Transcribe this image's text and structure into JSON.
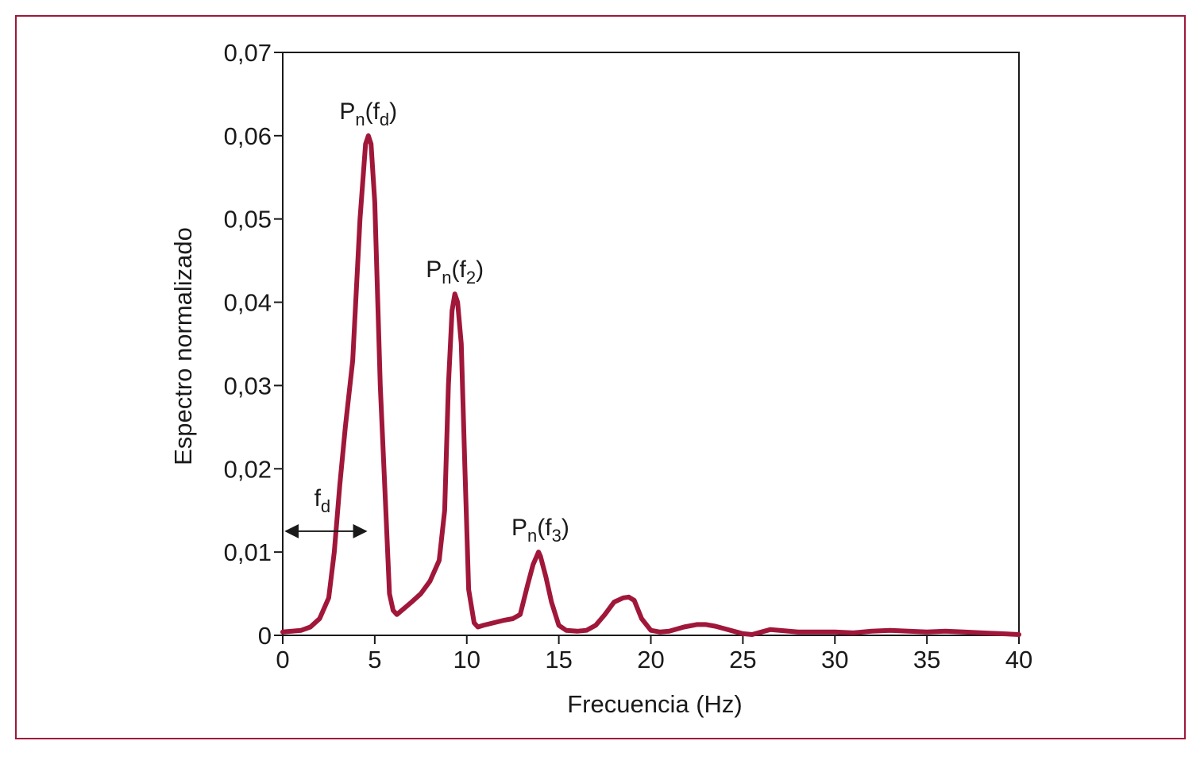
{
  "colors": {
    "frame": "#a0173a",
    "line": "#a0173a",
    "axis": "#1a1a1a"
  },
  "chart_data": {
    "type": "line",
    "xlabel": "Frecuencia (Hz)",
    "ylabel": "Espectro normalizado",
    "xlim": [
      0,
      40
    ],
    "ylim": [
      0,
      0.07
    ],
    "x_ticks": [
      0,
      5,
      10,
      15,
      20,
      25,
      30,
      35,
      40
    ],
    "x_tick_labels": [
      "0",
      "5",
      "10",
      "15",
      "20",
      "25",
      "30",
      "35",
      "40"
    ],
    "y_ticks": [
      0,
      0.01,
      0.02,
      0.03,
      0.04,
      0.05,
      0.06,
      0.07
    ],
    "y_tick_labels": [
      "0",
      "0,01",
      "0,02",
      "0,03",
      "0,04",
      "0,05",
      "0,06",
      "0,07"
    ],
    "grid": false,
    "series": [
      {
        "x": [
          0,
          1,
          1.5,
          2,
          2.5,
          2.8,
          3.1,
          3.4,
          3.8,
          4.2,
          4.5,
          4.65,
          4.8,
          5.0,
          5.3,
          5.6,
          5.8,
          6.0,
          6.2,
          7.0,
          7.5,
          8.0,
          8.5,
          8.8,
          9.0,
          9.2,
          9.35,
          9.5,
          9.7,
          9.9,
          10.1,
          10.4,
          10.6,
          10.9,
          12.0,
          12.5,
          12.9,
          13.3,
          13.6,
          13.9,
          14.0,
          14.3,
          14.6,
          15.0,
          15.4,
          16.0,
          16.5,
          17.0,
          17.5,
          18.0,
          18.5,
          18.8,
          19.1,
          19.5,
          20.0,
          20.5,
          21.0,
          21.8,
          22.5,
          23.0,
          23.5,
          24.0,
          24.5,
          25.0,
          25.5,
          26.0,
          26.5,
          27.0,
          28.0,
          29.0,
          30.0,
          31.0,
          32.0,
          33.0,
          34.0,
          35.0,
          36.0,
          37.0,
          38.0,
          39.0,
          40.0
        ],
        "y": [
          0.0004,
          0.0006,
          0.001,
          0.002,
          0.0045,
          0.01,
          0.018,
          0.025,
          0.033,
          0.05,
          0.059,
          0.06,
          0.059,
          0.052,
          0.03,
          0.015,
          0.005,
          0.003,
          0.0025,
          0.004,
          0.005,
          0.0065,
          0.009,
          0.015,
          0.03,
          0.039,
          0.041,
          0.04,
          0.035,
          0.02,
          0.0055,
          0.0015,
          0.001,
          0.0012,
          0.0018,
          0.002,
          0.0025,
          0.006,
          0.0085,
          0.01,
          0.0095,
          0.007,
          0.004,
          0.0012,
          0.0006,
          0.0005,
          0.0006,
          0.0012,
          0.0025,
          0.004,
          0.0045,
          0.0046,
          0.0042,
          0.002,
          0.0006,
          0.0004,
          0.0005,
          0.001,
          0.0013,
          0.0013,
          0.0011,
          0.0008,
          0.0005,
          0.0002,
          0.0001,
          0.0004,
          0.0007,
          0.0006,
          0.0004,
          0.0004,
          0.0004,
          0.0003,
          0.0005,
          0.0006,
          0.0005,
          0.0004,
          0.0005,
          0.0004,
          0.0003,
          0.0002,
          0.0001
        ]
      }
    ],
    "annotations": [
      {
        "base": "P",
        "sub1": "n",
        "mid": "(f",
        "sub2": "d",
        "end": ")",
        "x": 4.65,
        "y": 0.06
      },
      {
        "base": "P",
        "sub1": "n",
        "mid": "(f",
        "sub2": "2",
        "end": ")",
        "x": 9.35,
        "y": 0.041
      },
      {
        "base": "P",
        "sub1": "n",
        "mid": "(f",
        "sub2": "3",
        "end": ")",
        "x": 14.0,
        "y": 0.01
      }
    ],
    "range_marker": {
      "base": "f",
      "sub": "d",
      "x_start": 0,
      "x_end": 4.65,
      "y": 0.0125
    }
  }
}
